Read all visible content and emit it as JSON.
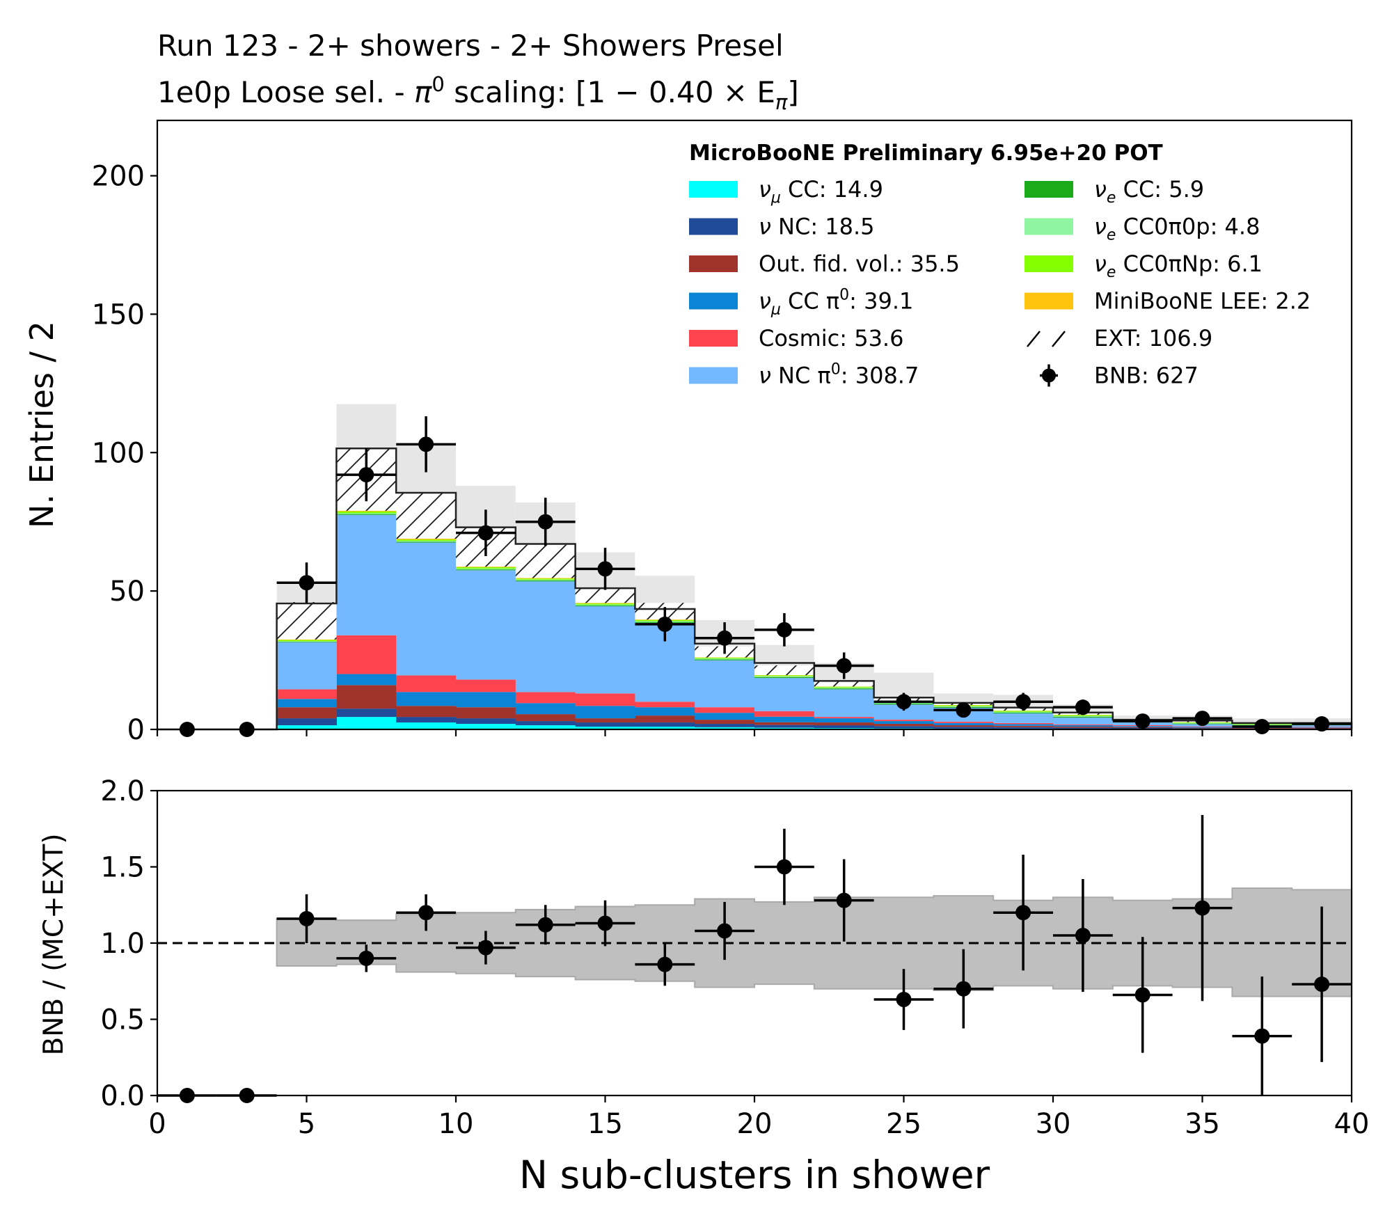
{
  "chart_data": [
    {
      "type": "bar",
      "stacked": true,
      "title": "Run 123 - 2+ showers - 2+ Showers Presel",
      "subtitle": {
        "text": "1e0p Loose sel. - ",
        "pi": "π",
        "sup": "0",
        "rest": " scaling: [1 − 0.40 × E",
        "sub": "π",
        "close": "]"
      },
      "ylabel": "N. Entries / 2",
      "xlim": [
        0,
        40
      ],
      "ylim": [
        0,
        220
      ],
      "yticks": [
        "0",
        "50",
        "100",
        "150",
        "200"
      ],
      "bin_edges": [
        0,
        2,
        4,
        6,
        8,
        10,
        12,
        14,
        16,
        18,
        20,
        22,
        24,
        26,
        28,
        30,
        32,
        34,
        36,
        38,
        40
      ],
      "legend_title": "MicroBooNE Preliminary 6.95e+20 POT",
      "legend_placement": "top-right",
      "legend": [
        {
          "key": "numu_cc",
          "pre": "ν",
          "sub": "μ",
          "post": " CC: 14.9"
        },
        {
          "key": "nu_nc",
          "pre": "ν NC: 18.5"
        },
        {
          "key": "ofv",
          "pre": "Out. fid. vol.: 35.5"
        },
        {
          "key": "numu_cc_pi0",
          "pre": "ν",
          "sub": "μ",
          "post": " CC π",
          "sup": "0",
          "post2": ": 39.1"
        },
        {
          "key": "cosmic",
          "pre": "Cosmic: 53.6"
        },
        {
          "key": "nc_pi0",
          "pre": "ν NC π",
          "sup": "0",
          "post2": ": 308.7"
        },
        {
          "key": "nue_cc",
          "pre": "ν",
          "sub": "e",
          "post": " CC: 5.9"
        },
        {
          "key": "nue_0p",
          "pre": "ν",
          "sub": "e",
          "post": " CC0π0p: 4.8"
        },
        {
          "key": "nue_np",
          "pre": "ν",
          "sub": "e",
          "post": " CC0πNp: 6.1"
        },
        {
          "key": "lee",
          "pre": "MiniBooNE LEE: 2.2"
        },
        {
          "key": "ext",
          "pre": "EXT: 106.9"
        },
        {
          "key": "bnb",
          "pre": "BNB: 627"
        }
      ],
      "series": [
        {
          "key": "numu_cc",
          "color": "#00ffff",
          "values": [
            0,
            0,
            1.5,
            4.5,
            2.5,
            2,
            1.5,
            1,
            1,
            0.8,
            0.6,
            0.5,
            0.4,
            0.3,
            0.3,
            0.2,
            0.2,
            0.1,
            0.1,
            0.1
          ]
        },
        {
          "key": "nu_nc",
          "color": "#1f4b99",
          "values": [
            0,
            0,
            2.5,
            3,
            2,
            2,
            1.5,
            1.5,
            1.5,
            1.2,
            1,
            1,
            0.8,
            0.6,
            0.5,
            0.4,
            0.3,
            0.3,
            0.2,
            0.2
          ]
        },
        {
          "key": "ofv",
          "color": "#a0342c",
          "values": [
            0,
            0,
            4,
            8.5,
            4,
            4,
            2.5,
            1.5,
            2.5,
            1.5,
            1,
            1,
            0.8,
            0.6,
            0.5,
            0.4,
            0.3,
            0.2,
            0.2,
            0.2
          ]
        },
        {
          "key": "numu_cc_pi0",
          "color": "#0b84d6",
          "values": [
            0,
            0,
            3,
            4,
            5,
            5.5,
            4,
            4.5,
            3,
            2.5,
            2,
            1.5,
            1,
            0.8,
            0.6,
            0.5,
            0.4,
            0.3,
            0.2,
            0.2
          ]
        },
        {
          "key": "cosmic",
          "color": "#ff444f",
          "values": [
            0,
            0,
            3.5,
            14,
            6,
            4.5,
            4,
            4.5,
            2,
            2,
            2,
            0.5,
            0.5,
            0.5,
            0.4,
            0.3,
            0.3,
            0.2,
            0.2,
            0.2
          ]
        },
        {
          "key": "nc_pi0",
          "color": "#74b9ff",
          "values": [
            0,
            0,
            17,
            43.5,
            48,
            39.5,
            40,
            31.5,
            28.5,
            17,
            12,
            10,
            5.5,
            5,
            3.5,
            2.5,
            1,
            0.8,
            0.5,
            0.6
          ]
        },
        {
          "key": "nue_cc",
          "color": "#1aaa1a",
          "values": [
            0,
            0,
            0.2,
            0.3,
            0.3,
            0.3,
            0.3,
            0.3,
            0.3,
            0.3,
            0.3,
            0.3,
            0.3,
            0.3,
            0.3,
            0.3,
            0.2,
            0.2,
            0.2,
            0.2
          ]
        },
        {
          "key": "nue_0p",
          "color": "#90f5a0",
          "values": [
            0,
            0,
            0.2,
            0.3,
            0.3,
            0.3,
            0.3,
            0.3,
            0.3,
            0.3,
            0.3,
            0.3,
            0.3,
            0.3,
            0.3,
            0.3,
            0.2,
            0.2,
            0.2,
            0.2
          ]
        },
        {
          "key": "nue_np",
          "color": "#85ff00",
          "values": [
            0,
            0,
            0.4,
            0.6,
            0.5,
            0.5,
            0.4,
            0.4,
            0.4,
            0.3,
            0.3,
            0.3,
            0.3,
            0.3,
            0.3,
            0.3,
            0.2,
            0.2,
            0.2,
            0.2
          ]
        },
        {
          "key": "lee",
          "color": "#fdc30f",
          "values": [
            0,
            0,
            0.2,
            0.3,
            0.3,
            0.2,
            0.2,
            0.2,
            0.2,
            0.1,
            0.1,
            0.1,
            0.1,
            0.1,
            0.1,
            0.1,
            0.1,
            0.1,
            0.1,
            0.1
          ]
        }
      ],
      "ext": {
        "color": "#ffffff",
        "values": [
          0,
          0,
          13.5,
          22.5,
          16.5,
          14.5,
          12,
          5,
          6,
          4,
          3.5,
          2,
          1.5,
          0.8,
          0.9,
          0.6,
          0.3,
          0.4,
          0.2,
          0.1
        ]
      },
      "total": [
        0,
        0,
        45.5,
        101.5,
        85.5,
        73,
        67,
        51,
        43.5,
        31,
        24,
        17.5,
        11.5,
        9.6,
        7.9,
        6.1,
        3.5,
        3.2,
        2.3,
        2.3
      ],
      "syst": {
        "color": "#e6e6e6",
        "low": [
          0,
          0,
          38.5,
          86,
          68,
          58,
          52,
          40,
          31,
          22.5,
          17.5,
          11,
          7.5,
          6,
          5,
          3.5,
          1.5,
          1,
          0.8,
          1
        ],
        "high": [
          0,
          0,
          52.5,
          117.5,
          103,
          88,
          82,
          64,
          55.5,
          39.5,
          30.5,
          24,
          20.5,
          13,
          12.5,
          9,
          5,
          5,
          4,
          4
        ]
      },
      "data_points": {
        "label": "BNB",
        "color": "#000000",
        "x": [
          1,
          3,
          5,
          7,
          9,
          11,
          13,
          15,
          17,
          19,
          21,
          23,
          25,
          27,
          29,
          31,
          33,
          35,
          37,
          39
        ],
        "y": [
          0,
          0,
          53,
          92,
          103,
          71,
          75,
          58,
          38,
          33,
          36,
          23,
          10,
          7,
          10,
          8,
          3,
          4,
          1,
          2
        ],
        "yerr": [
          0,
          0,
          7.3,
          9.6,
          10.1,
          8.4,
          8.7,
          7.6,
          6.2,
          5.7,
          6,
          4.8,
          3.2,
          2.6,
          3.2,
          2.8,
          1.7,
          2,
          1,
          1.4
        ]
      }
    },
    {
      "type": "scatter",
      "xlabel": "N sub-clusters in shower",
      "ylabel": "BNB / (MC+EXT)",
      "xlim": [
        0,
        40
      ],
      "ylim": [
        0,
        2
      ],
      "xticks": [
        "0",
        "5",
        "10",
        "15",
        "20",
        "25",
        "30",
        "35",
        "40"
      ],
      "yticks": [
        "0.0",
        "0.5",
        "1.0",
        "1.5",
        "2.0"
      ],
      "reference_line": 1.0,
      "band": {
        "color": "#bfbfbf",
        "edges": [
          4,
          6,
          8,
          10,
          12,
          14,
          16,
          18,
          20,
          22,
          24,
          26,
          28,
          30,
          32,
          34,
          36,
          38,
          40
        ],
        "low": [
          0.85,
          0.86,
          0.81,
          0.8,
          0.78,
          0.76,
          0.75,
          0.71,
          0.73,
          0.7,
          0.7,
          0.69,
          0.72,
          0.7,
          0.72,
          0.71,
          0.65,
          0.65
        ],
        "high": [
          1.16,
          1.15,
          1.19,
          1.2,
          1.22,
          1.24,
          1.25,
          1.29,
          1.27,
          1.3,
          1.3,
          1.31,
          1.28,
          1.3,
          1.28,
          1.29,
          1.36,
          1.35
        ]
      },
      "x": [
        1,
        3,
        5,
        7,
        9,
        11,
        13,
        15,
        17,
        19,
        21,
        23,
        25,
        27,
        29,
        31,
        33,
        35,
        37,
        39
      ],
      "y": [
        0,
        0,
        1.16,
        0.9,
        1.2,
        0.97,
        1.12,
        1.13,
        0.86,
        1.08,
        1.5,
        1.28,
        0.63,
        0.7,
        1.2,
        1.05,
        0.66,
        1.23,
        0.39,
        0.73
      ],
      "yerr": [
        0,
        0,
        0.16,
        0.09,
        0.12,
        0.11,
        0.13,
        0.15,
        0.14,
        0.19,
        0.25,
        0.27,
        0.2,
        0.26,
        0.38,
        0.37,
        0.38,
        0.61,
        0.39,
        0.51
      ]
    }
  ]
}
